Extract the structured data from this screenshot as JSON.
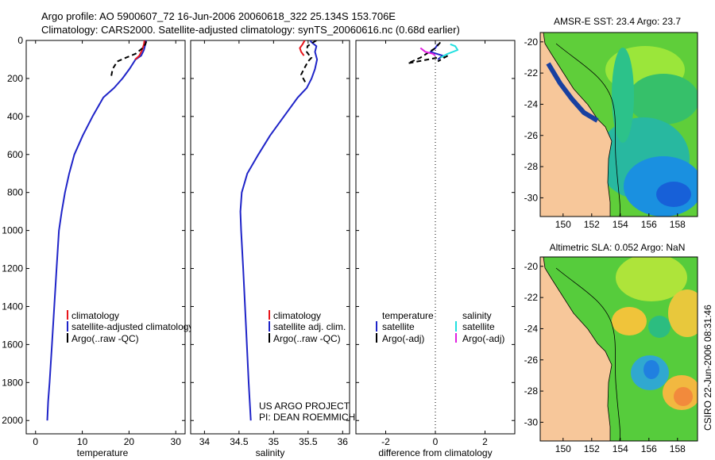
{
  "header": {
    "line1": "Argo profile: AO 5900607_72 16-Jun-2006 20060618_322 25.134S 153.706E",
    "line2": "Climatology: CARS2000. Satellite-adjusted climatology: synTS_20060616.nc (0.68d earlier)"
  },
  "side_text": "CSIRO 22-Jun-2006 08:31:46",
  "credits": {
    "line1": "US ARGO PROJECT",
    "line2": "PI: DEAN ROEMMICH"
  },
  "colors": {
    "climatology": "#e8161c",
    "satellite": "#1f24c8",
    "argo": "#000000",
    "sal_satellite": "#22e0e0",
    "sal_argo": "#e020e0",
    "land": "#f7c79a"
  },
  "chart_data": [
    {
      "type": "line",
      "id": "temp",
      "xlabel": "temperature",
      "ylabel": "",
      "xlim": [
        -2,
        32
      ],
      "ylim": [
        2070,
        0
      ],
      "y_reversed": true,
      "xticks": [
        0,
        10,
        20,
        30
      ],
      "yticks": [
        0,
        200,
        400,
        600,
        800,
        1000,
        1200,
        1400,
        1600,
        1800,
        2000
      ],
      "legend": [
        "climatology",
        "satellite-adjusted climatology",
        "Argo(..raw -QC)"
      ],
      "series": [
        {
          "name": "satellite-adjusted climatology",
          "color": "#1f24c8",
          "x": [
            23.6,
            23.5,
            23.2,
            22.6,
            21.4,
            20.1,
            18.6,
            16.8,
            14.5,
            12.2,
            10.1,
            8.3,
            7.2,
            6.3,
            5.6,
            5.0,
            4.5,
            4.0,
            3.5,
            3.0,
            2.7,
            2.5
          ],
          "y": [
            0,
            20,
            50,
            80,
            100,
            150,
            200,
            250,
            300,
            400,
            500,
            600,
            700,
            800,
            900,
            1000,
            1200,
            1400,
            1600,
            1800,
            1900,
            2000
          ]
        },
        {
          "name": "climatology",
          "color": "#e8161c",
          "x": [
            23.3,
            23.2,
            22.8,
            22.2,
            21.3
          ],
          "y": [
            0,
            20,
            50,
            80,
            100
          ]
        },
        {
          "name": "Argo(..raw -QC)",
          "color": "#000000",
          "dashed": true,
          "x": [
            23.7,
            23.5,
            22.9,
            21.4,
            19.4,
            17.5,
            16.5,
            16.1
          ],
          "y": [
            5,
            20,
            40,
            70,
            90,
            110,
            150,
            200
          ]
        }
      ]
    },
    {
      "type": "line",
      "id": "sal",
      "xlabel": "salinity",
      "ylabel": "",
      "xlim": [
        33.8,
        36.1
      ],
      "ylim": [
        2070,
        0
      ],
      "y_reversed": true,
      "xticks": [
        34,
        34.5,
        35,
        35.5,
        36
      ],
      "yticks": [],
      "legend": [
        "climatology",
        "satellite adj. clim.",
        "Argo(..raw -QC)"
      ],
      "series": [
        {
          "name": "satellite adj. clim.",
          "color": "#1f24c8",
          "x": [
            35.53,
            35.55,
            35.62,
            35.6,
            35.63,
            35.6,
            35.55,
            35.48,
            35.35,
            35.15,
            34.95,
            34.78,
            34.62,
            34.54,
            34.52,
            34.53,
            34.56,
            34.6,
            34.64,
            34.67
          ],
          "y": [
            0,
            10,
            30,
            60,
            100,
            150,
            200,
            250,
            300,
            400,
            500,
            600,
            700,
            800,
            900,
            1000,
            1200,
            1500,
            1800,
            2000
          ]
        },
        {
          "name": "climatology",
          "color": "#e8161c",
          "x": [
            35.45,
            35.42,
            35.38,
            35.4,
            35.44
          ],
          "y": [
            0,
            20,
            40,
            60,
            80
          ]
        },
        {
          "name": "Argo(..raw -QC)",
          "color": "#000000",
          "dashed": true,
          "x": [
            35.62,
            35.55,
            35.49,
            35.48,
            35.52,
            35.55,
            35.5,
            35.44,
            35.4,
            35.46
          ],
          "y": [
            0,
            15,
            30,
            60,
            80,
            90,
            110,
            150,
            180,
            220
          ]
        }
      ]
    },
    {
      "type": "line",
      "id": "diff",
      "xlabel": "difference from climatology",
      "ylabel": "",
      "xlim": [
        -3.2,
        3.2
      ],
      "ylim": [
        2070,
        0
      ],
      "y_reversed": true,
      "xticks": [
        -2,
        0,
        2
      ],
      "yticks": [],
      "legend_titles": [
        "temperature",
        "salinity"
      ],
      "legend": [
        "satellite",
        "Argo(-adj)",
        "satellite",
        "Argo(-adj)"
      ],
      "series": [
        {
          "name": "temperature satellite",
          "color": "#1f24c8",
          "x": [
            0.1,
            0.0,
            -0.2,
            0.3,
            0.1
          ],
          "y": [
            20,
            40,
            60,
            80,
            100
          ]
        },
        {
          "name": "temperature Argo(-adj)",
          "color": "#000000",
          "dashed": true,
          "x": [
            0.2,
            0.0,
            -0.6,
            -1.1,
            0.5,
            0.1
          ],
          "y": [
            10,
            40,
            90,
            120,
            80,
            110
          ]
        },
        {
          "name": "salinity satellite",
          "color": "#22e0e0",
          "x": [
            0.6,
            0.8,
            0.9,
            0.5,
            0.2
          ],
          "y": [
            20,
            30,
            50,
            70,
            90
          ]
        },
        {
          "name": "salinity Argo(-adj)",
          "color": "#e020e0",
          "x": [
            -0.6,
            -0.4,
            -0.1,
            0.0
          ],
          "y": [
            40,
            60,
            70,
            80
          ]
        }
      ]
    },
    {
      "type": "heatmap",
      "id": "sst",
      "title": "AMSR-E SST: 23.4 Argo: 23.7",
      "xlim": [
        148.4,
        159.4
      ],
      "ylim": [
        -31.2,
        -19.4
      ],
      "xticks": [
        150,
        152,
        154,
        156,
        158
      ],
      "yticks": [
        -20,
        -22,
        -24,
        -26,
        -28,
        -30
      ]
    },
    {
      "type": "heatmap",
      "id": "sla",
      "title": "Altimetric SLA: 0.052 Argo: NaN",
      "xlim": [
        148.4,
        159.4
      ],
      "ylim": [
        -31.2,
        -19.4
      ],
      "xticks": [
        150,
        152,
        154,
        156,
        158
      ],
      "yticks": [
        -20,
        -22,
        -24,
        -26,
        -28,
        -30
      ]
    }
  ]
}
